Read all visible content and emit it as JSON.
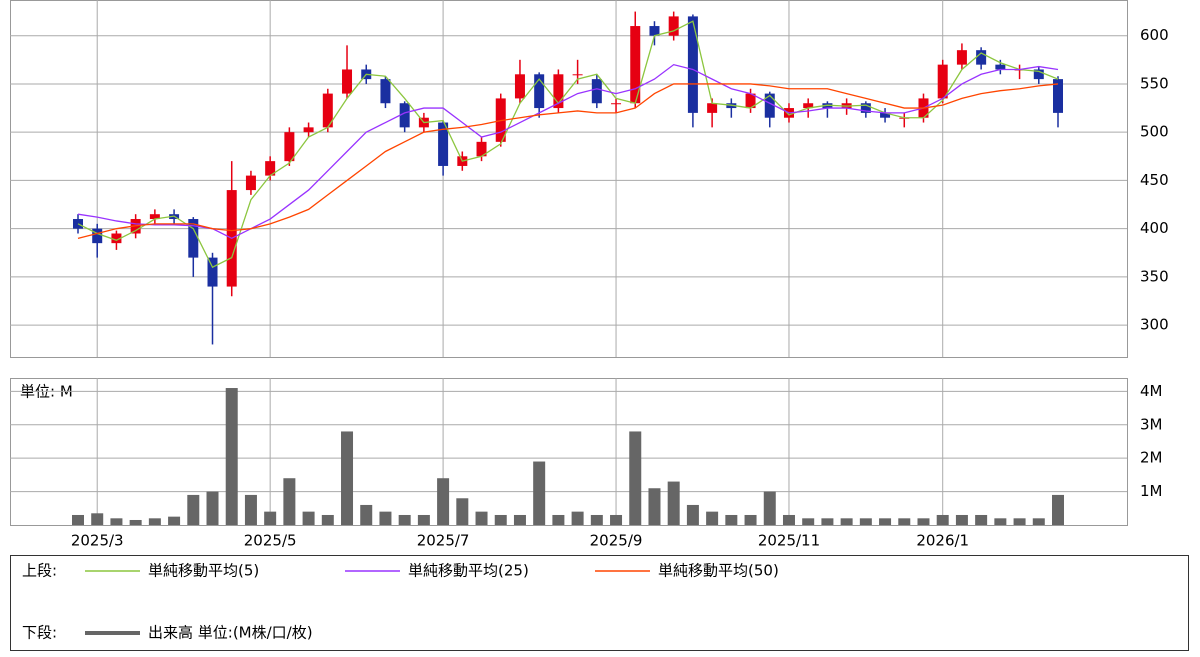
{
  "chart_data": [
    {
      "type": "candlestick",
      "legend_label": "上段:",
      "categories": [
        null,
        "2025/3",
        null,
        null,
        null,
        null,
        null,
        null,
        null,
        null,
        "2025/5",
        null,
        null,
        null,
        null,
        null,
        null,
        null,
        null,
        "2025/7",
        null,
        null,
        null,
        null,
        null,
        null,
        null,
        null,
        "2025/9",
        null,
        null,
        null,
        null,
        null,
        null,
        null,
        null,
        "2025/11",
        null,
        null,
        null,
        null,
        null,
        null,
        null,
        "2026/1",
        null,
        null,
        null,
        null,
        null,
        null
      ],
      "open": [
        410,
        400,
        385,
        395,
        410,
        415,
        410,
        370,
        340,
        440,
        455,
        470,
        500,
        505,
        540,
        565,
        555,
        530,
        505,
        510,
        465,
        475,
        490,
        535,
        560,
        525,
        560,
        555,
        530,
        530,
        610,
        600,
        620,
        520,
        530,
        525,
        540,
        515,
        525,
        530,
        525,
        530,
        520,
        515,
        515,
        535,
        570,
        585,
        570,
        565,
        565,
        555
      ],
      "high": [
        415,
        405,
        398,
        415,
        420,
        420,
        412,
        375,
        470,
        460,
        475,
        505,
        510,
        545,
        590,
        570,
        558,
        532,
        520,
        512,
        480,
        495,
        540,
        575,
        562,
        565,
        575,
        560,
        535,
        625,
        615,
        625,
        622,
        535,
        535,
        545,
        542,
        530,
        535,
        532,
        535,
        532,
        525,
        520,
        540,
        575,
        592,
        588,
        575,
        570,
        568,
        558
      ],
      "low": [
        395,
        370,
        378,
        390,
        405,
        405,
        350,
        280,
        330,
        435,
        450,
        465,
        495,
        500,
        535,
        550,
        525,
        500,
        500,
        455,
        460,
        470,
        485,
        530,
        515,
        520,
        550,
        525,
        520,
        525,
        590,
        595,
        505,
        505,
        515,
        520,
        505,
        510,
        515,
        515,
        518,
        515,
        510,
        505,
        510,
        530,
        565,
        565,
        560,
        555,
        550,
        505
      ],
      "close": [
        400,
        385,
        395,
        410,
        415,
        410,
        370,
        340,
        440,
        455,
        470,
        500,
        505,
        540,
        565,
        555,
        530,
        505,
        515,
        465,
        475,
        490,
        535,
        560,
        525,
        560,
        560,
        530,
        530,
        610,
        600,
        620,
        520,
        530,
        525,
        540,
        515,
        525,
        530,
        525,
        530,
        520,
        515,
        515,
        535,
        570,
        585,
        570,
        565,
        565,
        555,
        520
      ],
      "up_color": "#e60012",
      "down_color": "#1a2fa0",
      "series": [
        {
          "name": "単純移動平均(5)",
          "color": "#8cc63f",
          "values": [
            405,
            395,
            388,
            398,
            410,
            413,
            400,
            360,
            370,
            430,
            455,
            468,
            495,
            505,
            535,
            560,
            558,
            535,
            510,
            512,
            470,
            475,
            488,
            530,
            555,
            530,
            555,
            560,
            535,
            530,
            600,
            605,
            615,
            530,
            528,
            525,
            538,
            518,
            525,
            528,
            527,
            528,
            520,
            515,
            515,
            533,
            565,
            582,
            572,
            565,
            563,
            555
          ]
        },
        {
          "name": "単純移動平均(25)",
          "color": "#9933ff",
          "values": [
            415,
            412,
            408,
            405,
            404,
            404,
            403,
            400,
            390,
            400,
            410,
            425,
            440,
            460,
            480,
            500,
            510,
            520,
            525,
            525,
            510,
            495,
            500,
            510,
            520,
            530,
            540,
            545,
            540,
            545,
            555,
            570,
            565,
            555,
            545,
            540,
            530,
            520,
            522,
            525,
            525,
            522,
            520,
            520,
            525,
            535,
            550,
            560,
            565,
            565,
            568,
            565
          ]
        },
        {
          "name": "単純移動平均(50)",
          "color": "#ff4500",
          "values": [
            390,
            395,
            400,
            403,
            405,
            405,
            405,
            400,
            398,
            400,
            405,
            412,
            420,
            435,
            450,
            465,
            480,
            490,
            500,
            503,
            505,
            508,
            512,
            515,
            518,
            520,
            522,
            520,
            520,
            525,
            540,
            550,
            550,
            550,
            550,
            550,
            548,
            545,
            545,
            545,
            540,
            535,
            530,
            525,
            525,
            528,
            535,
            540,
            543,
            545,
            548,
            550
          ]
        }
      ],
      "ylim": [
        267,
        637
      ],
      "yticks": [
        300,
        350,
        400,
        450,
        500,
        550,
        600
      ],
      "grid": true
    },
    {
      "type": "bar",
      "legend_label": "下段:",
      "unit_label": "単位: M",
      "series": [
        {
          "name": "出来高 単位:(M株/口/枚)",
          "color": "#666666",
          "values": [
            0.3,
            0.35,
            0.2,
            0.15,
            0.2,
            0.25,
            0.9,
            1.0,
            4.1,
            0.9,
            0.4,
            1.4,
            0.4,
            0.3,
            2.8,
            0.6,
            0.4,
            0.3,
            0.3,
            1.4,
            0.8,
            0.4,
            0.3,
            0.3,
            1.9,
            0.3,
            0.4,
            0.3,
            0.3,
            2.8,
            1.1,
            1.3,
            0.6,
            0.4,
            0.3,
            0.3,
            1.0,
            0.3,
            0.2,
            0.2,
            0.2,
            0.2,
            0.2,
            0.2,
            0.2,
            0.3,
            0.3,
            0.3,
            0.2,
            0.2,
            0.2,
            0.9
          ]
        }
      ],
      "ylim": [
        0,
        4.4
      ],
      "yticks": [
        {
          "value": 1,
          "label": "1M"
        },
        {
          "value": 2,
          "label": "2M"
        },
        {
          "value": 3,
          "label": "3M"
        },
        {
          "value": 4,
          "label": "4M"
        }
      ]
    }
  ]
}
